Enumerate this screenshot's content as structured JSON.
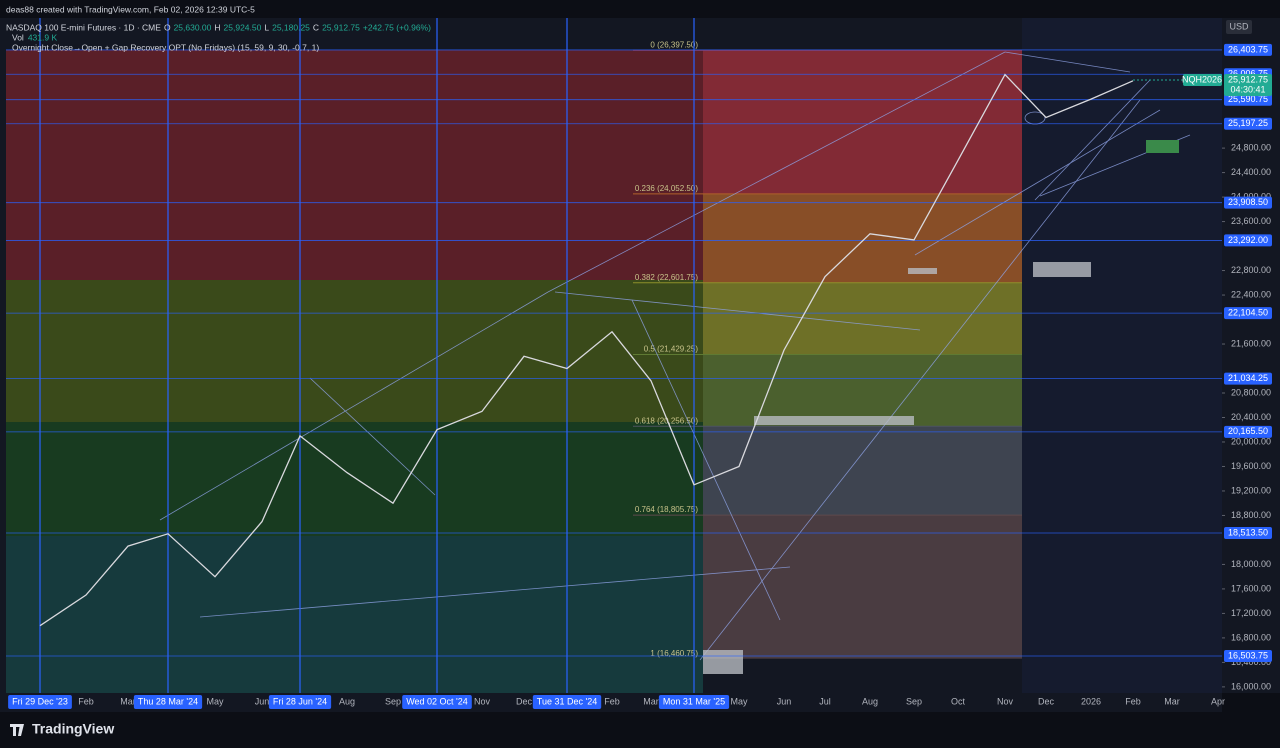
{
  "header": {
    "credit": "deas88 created with TradingView.com, Feb 02, 2026 12:39 UTC-5",
    "symbol": "NASDAQ 100 E-mini Futures · 1D · CME",
    "ohlc": [
      {
        "key": "O",
        "value": "25,630.00"
      },
      {
        "key": "H",
        "value": "25,924.50"
      },
      {
        "key": "L",
        "value": "25,180.25"
      },
      {
        "key": "C",
        "value": "25,912.75"
      }
    ],
    "change": "+242.75 (+0.96%)",
    "volume_label": "Vol",
    "volume": "431.9 K",
    "indicator": "Overnight Close→Open + Gap Recovery OPT (No Fridays) (15, 59, 9, 30, -0.7, 1)"
  },
  "currency": "USD",
  "countdown": "04:30:41",
  "brand": "TradingView",
  "chart_data": {
    "type": "line",
    "categories": [
      "Fri 29 Dec '23",
      "Feb",
      "Mar",
      "Thu 28 Mar '24",
      "May",
      "Jun",
      "Fri 28 Jun '24",
      "Aug",
      "Sep",
      "Wed 02 Oct '24",
      "Nov",
      "Dec",
      "Tue 31 Dec '24",
      "Feb",
      "Mar",
      "Mon 31 Mar '25",
      "May",
      "Jun",
      "Jul",
      "Aug",
      "Sep",
      "Oct",
      "Nov",
      "Dec",
      "2026",
      "Feb",
      "Mar",
      "Apr"
    ],
    "highlighted_categories": [
      0,
      3,
      6,
      9,
      12,
      15
    ],
    "series": [
      {
        "name": "NQH2026",
        "color": "#d9d9de",
        "values": [
          17000,
          17500,
          18300,
          18500,
          17800,
          18700,
          20100,
          19500,
          19000,
          20200,
          20500,
          21400,
          21200,
          21800,
          21000,
          19300,
          19600,
          21500,
          22700,
          23400,
          23300,
          24600,
          26000,
          25300,
          25600,
          25900,
          null,
          null
        ]
      }
    ],
    "ylim": [
      15900,
      26925
    ],
    "yticks": [
      {
        "value": 16000,
        "label": "16,000.00"
      },
      {
        "value": 16400,
        "label": "16,400.00"
      },
      {
        "value": 16800,
        "label": "16,800.00"
      },
      {
        "value": 17200,
        "label": "17,200.00"
      },
      {
        "value": 17600,
        "label": "17,600.00"
      },
      {
        "value": 18000,
        "label": "18,000.00"
      },
      {
        "value": 18800,
        "label": "18,800.00"
      },
      {
        "value": 19200,
        "label": "19,200.00"
      },
      {
        "value": 19600,
        "label": "19,600.00"
      },
      {
        "value": 20000,
        "label": "20,000.00"
      },
      {
        "value": 20400,
        "label": "20,400.00"
      },
      {
        "value": 20800,
        "label": "20,800.00"
      },
      {
        "value": 21600,
        "label": "21,600.00"
      },
      {
        "value": 22400,
        "label": "22,400.00"
      },
      {
        "value": 22800,
        "label": "22,800.00"
      },
      {
        "value": 23600,
        "label": "23,600.00"
      },
      {
        "value": 24000,
        "label": "24,000.00"
      },
      {
        "value": 24400,
        "label": "24,400.00"
      },
      {
        "value": 24800,
        "label": "24,800.00"
      }
    ],
    "price_levels": [
      {
        "value": 26403.75,
        "label": "26,403.75"
      },
      {
        "value": 26006.75,
        "label": "26,006.75"
      },
      {
        "value": 25590.75,
        "label": "25,590.75"
      },
      {
        "value": 25197.25,
        "label": "25,197.25"
      },
      {
        "value": 23908.5,
        "label": "23,908.50"
      },
      {
        "value": 23292,
        "label": "23,292.00"
      },
      {
        "value": 22104.5,
        "label": "22,104.50"
      },
      {
        "value": 21034.25,
        "label": "21,034.25"
      },
      {
        "value": 20165.5,
        "label": "20,165.50"
      },
      {
        "value": 18513.5,
        "label": "18,513.50"
      },
      {
        "value": 16503.75,
        "label": "16,503.75"
      }
    ],
    "level_color": "#2962ff",
    "current_price": {
      "value": 25912.75,
      "label": "25,912.75",
      "color": "#22ab94"
    },
    "fib_levels": [
      {
        "value": 26397.5,
        "label": "0 (26,397.50)"
      },
      {
        "value": 24052.5,
        "label": "0.236 (24,052.50)"
      },
      {
        "value": 22601.75,
        "label": "0.382 (22,601.75)"
      },
      {
        "value": 21429.25,
        "label": "0.5 (21,429.25)"
      },
      {
        "value": 20256.5,
        "label": "0.618 (20,256.50)"
      },
      {
        "value": 18805.75,
        "label": "0.764 (18,805.75)"
      },
      {
        "value": 16460.75,
        "label": "1 (16,460.75)"
      }
    ],
    "fib_colors": [
      "#a8323c",
      "#b0622a",
      "#8d8f2a",
      "#5f7a33",
      "#4d5460",
      "#5e4a4c"
    ],
    "grid": false
  }
}
